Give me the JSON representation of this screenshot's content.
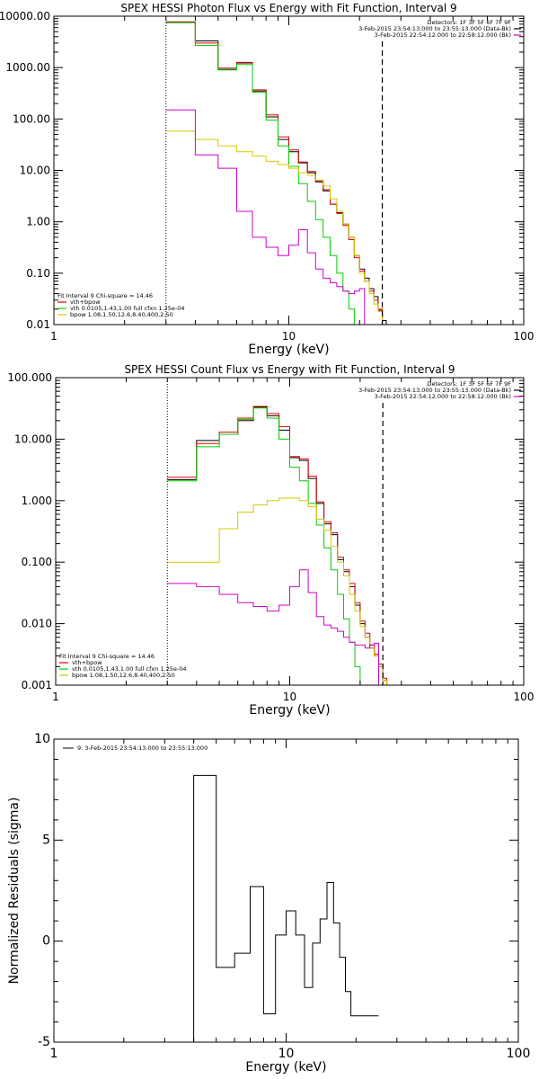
{
  "colors": {
    "data": "#000000",
    "total": "#e00000",
    "vth": "#00d000",
    "bpow": "#d8c800",
    "background": "#d000d0"
  },
  "chart_data": [
    {
      "type": "line",
      "title": "SPEX HESSI Photon Flux vs Energy with Fit Function, Interval 9",
      "xlabel": "Energy (keV)",
      "ylabel": "",
      "xscale": "log",
      "yscale": "log",
      "xlim": [
        1,
        100
      ],
      "ylim": [
        0.01,
        10000
      ],
      "xticks": [
        1,
        10,
        100
      ],
      "xtick_labels": [
        "1",
        "10",
        "100"
      ],
      "yticks": [
        0.01,
        0.1,
        1,
        10,
        100,
        1000,
        10000
      ],
      "ytick_labels": [
        "0.01",
        "0.10",
        "1.00",
        "10.00",
        "100.00",
        "1000.00",
        "10000.00"
      ],
      "header": [
        "Detectors: 1F 3F 5F 6F 7F 9F",
        "3-Feb-2015 23:54:13.000 to 23:55:13.000 (Data-Bk)",
        "3-Feb-2015 22:54:12.000 to 22:58:12.000 (Bk)"
      ],
      "legend_title": "Fit Interval 9   Chi-square = 14.46",
      "legend": [
        "vth+bpow",
        "vth 0.0105,1.43,1.00  full cfxn 1.25e-04",
        "bpow 1.08,1.50,12.6,8.40,400,2.50"
      ],
      "dotted_x": 3,
      "dashed_x": 25,
      "edges": [
        3,
        4,
        5,
        6,
        7,
        8,
        9,
        10,
        11,
        12,
        13,
        14,
        15,
        16,
        17,
        18,
        19,
        20,
        21,
        22,
        23,
        24,
        25,
        26,
        27,
        28
      ],
      "series": [
        {
          "name": "",
          "color": "#000000",
          "values": [
            7500,
            3300,
            920,
            1230,
            350,
            110,
            40,
            23,
            14,
            9,
            6,
            4,
            2.2,
            1.5,
            0.9,
            0.5,
            0.22,
            0.12,
            0.08,
            0.05,
            0.035,
            0.019,
            0.012,
            0,
            0
          ]
        },
        {
          "name": "vth+bpow",
          "color": "#e00000",
          "values": [
            7800,
            3000,
            980,
            1260,
            370,
            120,
            45,
            25,
            14.5,
            9.5,
            6.2,
            4.2,
            2.2,
            1.45,
            0.85,
            0.45,
            0.2,
            0.11,
            0.07,
            0.045,
            0.03,
            0.02,
            0,
            0,
            0
          ]
        },
        {
          "name": "vth 0.0105,1.43,1.00  full cfxn 1.25e-04",
          "color": "#00d000",
          "values": [
            7500,
            2700,
            900,
            1150,
            330,
            95,
            30,
            12,
            5.5,
            2.5,
            1.1,
            0.5,
            0.22,
            0.1,
            0.045,
            0.02,
            0.01,
            0,
            0,
            0,
            0,
            0,
            0,
            0,
            0
          ]
        },
        {
          "name": "bpow 1.08,1.50,12.6,8.40,400,2.50",
          "color": "#d8c800",
          "values": [
            58,
            40,
            30,
            23,
            19,
            15,
            13,
            11,
            9,
            8,
            6.5,
            5,
            2.8,
            1.6,
            0.9,
            0.5,
            0.22,
            0.1,
            0.07,
            0.04,
            0.025,
            0.018,
            0,
            0,
            0
          ]
        },
        {
          "name": "3-Feb-2015 22:54:12.000 to 22:58:12.000 (Bk)",
          "color": "#d000d0",
          "values": [
            150,
            20,
            11,
            1.6,
            0.5,
            0.32,
            0.22,
            0.35,
            0.7,
            0.25,
            0.12,
            0.08,
            0.065,
            0.055,
            0.045,
            0.04,
            0.045,
            0.05,
            0,
            0,
            0,
            0,
            0,
            0,
            0
          ]
        }
      ]
    },
    {
      "type": "line",
      "title": "SPEX HESSI Count Flux vs Energy with Fit Function, Interval 9",
      "xlabel": "Energy (keV)",
      "ylabel": "",
      "xscale": "log",
      "yscale": "log",
      "xlim": [
        1,
        100
      ],
      "ylim": [
        0.001,
        100
      ],
      "xticks": [
        1,
        10,
        100
      ],
      "xtick_labels": [
        "1",
        "10",
        "100"
      ],
      "yticks": [
        0.001,
        0.01,
        0.1,
        1,
        10,
        100
      ],
      "ytick_labels": [
        "0.001",
        "0.010",
        "0.100",
        "1.000",
        "10.000",
        "100.000"
      ],
      "header": [
        "Detectors: 1F 3F 5F 6F 7F 9F",
        "3-Feb-2015 23:54:13.000 to 23:55:13.000 (Data-Bk)",
        "3-Feb-2015 22:54:12.000 to 22:58:12.000 (Bk)"
      ],
      "legend_title": "Fit Interval 9   Chi-square = 14.46",
      "legend": [
        "vth+bpow",
        "vth 0.0105,1.43,1.00  full cfxn 1.25e-04",
        "bpow 1.08,1.50,12.6,8.40,400,2.50"
      ],
      "dotted_x": 3,
      "dashed_x": 25,
      "edges": [
        3,
        4,
        5,
        6,
        7,
        8,
        9,
        10,
        11,
        12,
        13,
        14,
        15,
        16,
        17,
        18,
        19,
        20,
        21,
        22,
        23,
        24,
        25,
        26,
        27,
        28
      ],
      "series": [
        {
          "name": "",
          "color": "#000000",
          "values": [
            2.2,
            9.5,
            12,
            20,
            33,
            24,
            14,
            5,
            4.5,
            2.3,
            0.9,
            0.42,
            0.28,
            0.11,
            0.07,
            0.04,
            0.02,
            0.01,
            0.006,
            0.004,
            0.003,
            0.002,
            0.0012,
            0,
            0
          ]
        },
        {
          "name": "vth+bpow",
          "color": "#e00000",
          "values": [
            2.4,
            8.5,
            13,
            22,
            34,
            26,
            16,
            5.2,
            4.8,
            2.5,
            0.95,
            0.45,
            0.3,
            0.12,
            0.075,
            0.045,
            0.022,
            0.011,
            0.007,
            0.0045,
            0.0032,
            0.0022,
            0.0013,
            0,
            0
          ]
        },
        {
          "name": "vth 0.0105,1.43,1.00  full cfxn 1.25e-04",
          "color": "#00d000",
          "values": [
            2.1,
            7.5,
            12,
            21,
            32,
            22,
            10,
            3.5,
            2.1,
            0.9,
            0.4,
            0.17,
            0.075,
            0.03,
            0.012,
            0.005,
            0.002,
            0.001,
            0,
            0,
            0,
            0,
            0,
            0,
            0
          ]
        },
        {
          "name": "bpow 1.08,1.50,12.6,8.40,400,2.50",
          "color": "#d8c800",
          "values": [
            0.1,
            0.1,
            0.35,
            0.65,
            0.85,
            1.0,
            1.1,
            1.1,
            1.0,
            0.8,
            0.5,
            0.33,
            0.18,
            0.1,
            0.06,
            0.03,
            0.016,
            0.009,
            0.006,
            0.004,
            0.003,
            0.002,
            0.0012,
            0.001,
            0
          ]
        },
        {
          "name": "3-Feb-2015 22:54:12.000 to 22:58:12.000 (Bk)",
          "color": "#d000d0",
          "values": [
            0.045,
            0.04,
            0.03,
            0.022,
            0.019,
            0.016,
            0.02,
            0.04,
            0.075,
            0.032,
            0.013,
            0.0095,
            0.0085,
            0.0075,
            0.006,
            0.005,
            0.0045,
            0.0045,
            0.004,
            0.0045,
            0.0048,
            0,
            0,
            0,
            0
          ]
        }
      ]
    },
    {
      "type": "line",
      "title": "",
      "xlabel": "Energy (keV)",
      "ylabel": "Normalized Residuals (sigma)",
      "xscale": "log",
      "yscale": "linear",
      "xlim": [
        1,
        100
      ],
      "ylim": [
        -5,
        10
      ],
      "xticks": [
        1,
        10,
        100
      ],
      "xtick_labels": [
        "1",
        "10",
        "100"
      ],
      "yticks": [
        -5,
        0,
        5,
        10
      ],
      "ytick_labels": [
        "-5",
        "0",
        "5",
        "10"
      ],
      "legend": [
        "9.  3-Feb-2015 23:54:13.000 to 23:55:13.000"
      ],
      "edges": [
        3,
        4,
        4.5,
        5,
        5.5,
        6,
        6.5,
        7,
        7.5,
        8,
        8.5,
        9,
        9.5,
        10,
        11,
        12,
        13,
        14,
        15,
        16,
        17,
        18,
        19,
        20,
        22,
        25
      ],
      "series": [
        {
          "name": "9.  3-Feb-2015 23:54:13.000 to 23:55:13.000",
          "color": "#000000",
          "values": [
            -5,
            8.2,
            8.2,
            -1.3,
            -1.3,
            -0.6,
            -0.6,
            2.7,
            2.7,
            -3.6,
            -3.6,
            0.3,
            0.3,
            1.5,
            0.3,
            -2.3,
            -0.1,
            1.1,
            2.9,
            0.9,
            -0.8,
            -2.5,
            -3.7,
            -3.7,
            -3.7
          ]
        }
      ]
    }
  ]
}
